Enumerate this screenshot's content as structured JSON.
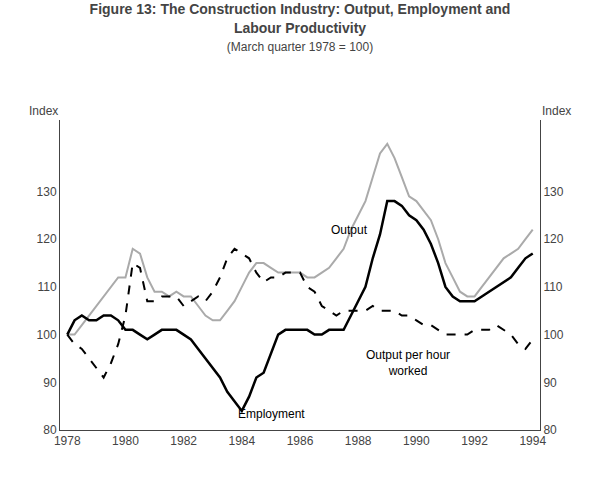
{
  "chart_data": {
    "type": "line",
    "title": "Figure 13: The Construction Industry: Output, Employment and\nLabour Productivity",
    "subtitle": "(March quarter 1978 = 100)",
    "ylabel": "Index",
    "y2label": "Index",
    "xlim": [
      1977.75,
      1994.25
    ],
    "xticks": [
      1978,
      1980,
      1982,
      1984,
      1986,
      1988,
      1990,
      1992,
      1994
    ],
    "ylim": [
      80,
      145
    ],
    "yticks": [
      80,
      90,
      100,
      110,
      120,
      130
    ],
    "y2lim": [
      80,
      145
    ],
    "y2ticks": [
      80,
      90,
      100,
      110,
      120,
      130
    ],
    "grid": false,
    "x": [
      1978.0,
      1978.25,
      1978.5,
      1978.75,
      1979.0,
      1979.25,
      1979.5,
      1979.75,
      1980.0,
      1980.25,
      1980.5,
      1980.75,
      1981.0,
      1981.25,
      1981.5,
      1981.75,
      1982.0,
      1982.25,
      1982.5,
      1982.75,
      1983.0,
      1983.25,
      1983.5,
      1983.75,
      1984.0,
      1984.25,
      1984.5,
      1984.75,
      1985.0,
      1985.25,
      1985.5,
      1985.75,
      1986.0,
      1986.25,
      1986.5,
      1986.75,
      1987.0,
      1987.25,
      1987.5,
      1987.75,
      1988.0,
      1988.25,
      1988.5,
      1988.75,
      1989.0,
      1989.25,
      1989.5,
      1989.75,
      1990.0,
      1990.25,
      1990.5,
      1990.75,
      1991.0,
      1991.25,
      1991.5,
      1991.75,
      1992.0,
      1992.25,
      1992.5,
      1992.75,
      1993.0,
      1993.25,
      1993.5,
      1993.75,
      1994.0
    ],
    "series": [
      {
        "color": "#aaaaaa",
        "line_style": "solid",
        "values": [
          100,
          100,
          102,
          104,
          106,
          108,
          110,
          112,
          112,
          118,
          117,
          112,
          109,
          109,
          108,
          109,
          108,
          108,
          106,
          104,
          103,
          103,
          105,
          107,
          110,
          113,
          115,
          115,
          114,
          113,
          113,
          113,
          113,
          112,
          112,
          113,
          114,
          116,
          118,
          122,
          125,
          128,
          133,
          138,
          140,
          137,
          133,
          129,
          128,
          126,
          124,
          120,
          115,
          112,
          109,
          108,
          108,
          110,
          112,
          114,
          116,
          117,
          118,
          120,
          122
        ]
      },
      {
        "color": "#000000",
        "line_style": "solid",
        "values": [
          100,
          103,
          104,
          103,
          103,
          104,
          104,
          103,
          101,
          101,
          100,
          99,
          100,
          101,
          101,
          101,
          100,
          99,
          97,
          95,
          93,
          91,
          88,
          86,
          84,
          87,
          91,
          92,
          96,
          100,
          101,
          101,
          101,
          101,
          100,
          100,
          101,
          101,
          101,
          104,
          107,
          110,
          116,
          121,
          128,
          128,
          127,
          125,
          124,
          122,
          119,
          115,
          110,
          108,
          107,
          107,
          107,
          108,
          109,
          110,
          111,
          112,
          114,
          116,
          117
        ]
      },
      {
        "color": "#000000",
        "line_style": "dashed",
        "values": [
          100,
          98,
          97,
          95,
          93,
          91,
          94,
          98,
          104,
          115,
          114,
          107,
          107,
          108,
          108,
          108,
          106,
          107,
          108,
          107,
          109,
          112,
          116,
          118,
          117,
          116,
          113,
          111,
          112,
          112,
          113,
          113,
          113,
          110,
          109,
          106,
          105,
          104,
          105,
          105,
          105,
          105,
          106,
          105,
          105,
          105,
          104,
          104,
          103,
          102,
          102,
          101,
          100,
          100,
          100,
          100,
          101,
          101,
          101,
          102,
          101,
          100,
          98,
          97,
          99
        ]
      }
    ],
    "annotations": [
      {
        "text": "Output",
        "x": 1987.0,
        "y": 120
      },
      {
        "text": "Employment",
        "x": 1983.8,
        "y": 81.5
      },
      {
        "text": "Output per hour\nworked",
        "x": 1988.2,
        "y": 90.5
      }
    ]
  }
}
